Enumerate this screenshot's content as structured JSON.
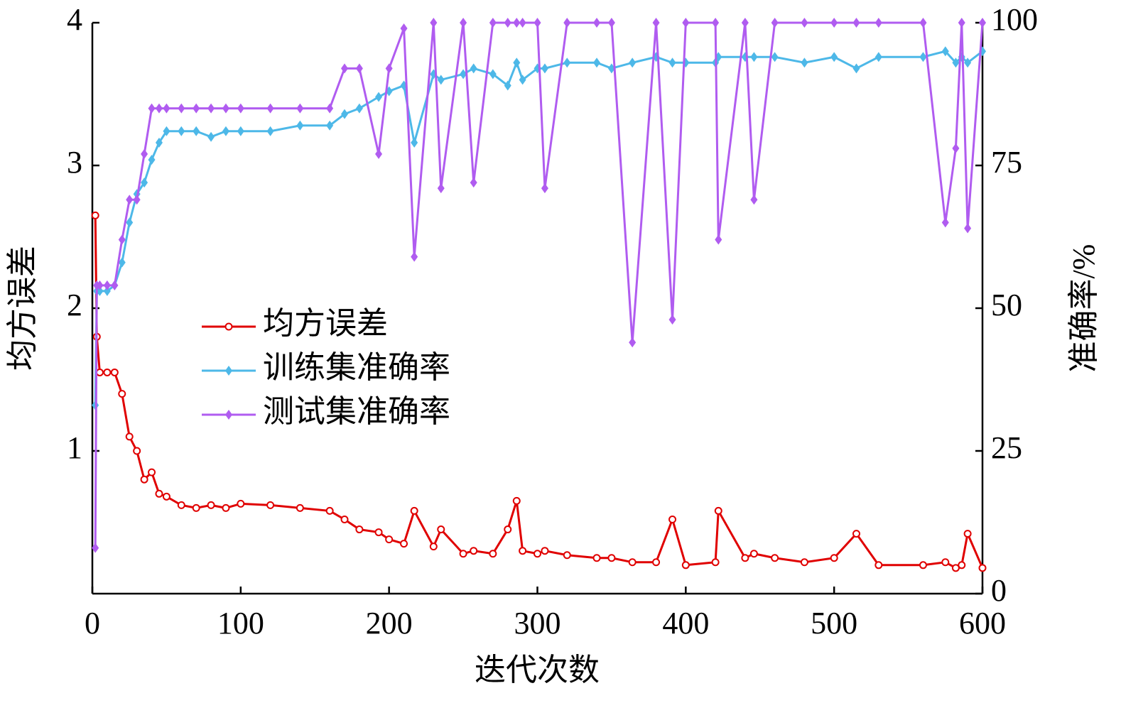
{
  "chart_data": {
    "type": "line",
    "xlabel": "迭代次数",
    "ylabel": "均方误差",
    "y2label": "准确率/%",
    "x": [
      2,
      3,
      5,
      10,
      15,
      20,
      25,
      30,
      35,
      40,
      45,
      50,
      60,
      70,
      80,
      90,
      100,
      120,
      140,
      160,
      170,
      180,
      193,
      200,
      210,
      217,
      230,
      235,
      250,
      257,
      270,
      280,
      286,
      290,
      300,
      305,
      320,
      340,
      350,
      364,
      380,
      391,
      400,
      420,
      422,
      440,
      446,
      460,
      480,
      500,
      515,
      530,
      560,
      575,
      582,
      586,
      590,
      600
    ],
    "series": [
      {
        "name": "均方误差",
        "color": "#e00000",
        "marker": "circle",
        "axis": "y",
        "values": [
          2.65,
          1.8,
          1.55,
          1.55,
          1.55,
          1.4,
          1.1,
          1.0,
          0.8,
          0.85,
          0.7,
          0.68,
          0.62,
          0.6,
          0.62,
          0.6,
          0.63,
          0.62,
          0.6,
          0.58,
          0.52,
          0.45,
          0.43,
          0.38,
          0.35,
          0.58,
          0.33,
          0.45,
          0.28,
          0.3,
          0.28,
          0.45,
          0.65,
          0.3,
          0.28,
          0.3,
          0.27,
          0.25,
          0.25,
          0.22,
          0.22,
          0.52,
          0.2,
          0.22,
          0.58,
          0.25,
          0.28,
          0.25,
          0.22,
          0.25,
          0.42,
          0.2,
          0.2,
          0.22,
          0.18,
          0.2,
          0.42,
          0.18
        ]
      },
      {
        "name": "训练集准确率",
        "color": "#4db8e8",
        "marker": "diamond",
        "axis": "y2",
        "values": [
          33,
          53,
          53,
          53,
          54,
          58,
          65,
          70,
          72,
          76,
          79,
          81,
          81,
          81,
          80,
          81,
          81,
          81,
          82,
          82,
          84,
          85,
          87,
          88,
          89,
          79,
          91,
          90,
          91,
          92,
          91,
          89,
          93,
          90,
          92,
          92,
          93,
          93,
          92,
          93,
          94,
          93,
          93,
          93,
          94,
          94,
          94,
          94,
          93,
          94,
          92,
          94,
          94,
          95,
          93,
          94,
          93,
          95
        ]
      },
      {
        "name": "测试集准确率",
        "color": "#b05cf0",
        "marker": "diamond",
        "axis": "y2",
        "values": [
          8,
          54,
          54,
          54,
          54,
          62,
          69,
          69,
          77,
          85,
          85,
          85,
          85,
          85,
          85,
          85,
          85,
          85,
          85,
          85,
          92,
          92,
          77,
          92,
          99,
          59,
          100,
          71,
          100,
          72,
          100,
          100,
          100,
          100,
          100,
          71,
          100,
          100,
          100,
          44,
          100,
          48,
          100,
          100,
          62,
          100,
          69,
          100,
          100,
          100,
          100,
          100,
          100,
          65,
          78,
          100,
          64,
          100
        ]
      }
    ],
    "xlim": [
      0,
      600
    ],
    "xticks": [
      0,
      100,
      200,
      300,
      400,
      500,
      600
    ],
    "ylim": [
      0,
      4
    ],
    "yticks": [
      1,
      2,
      3,
      4
    ],
    "y2lim": [
      0,
      100
    ],
    "y2ticks": [
      0,
      25,
      50,
      75,
      100
    ]
  }
}
